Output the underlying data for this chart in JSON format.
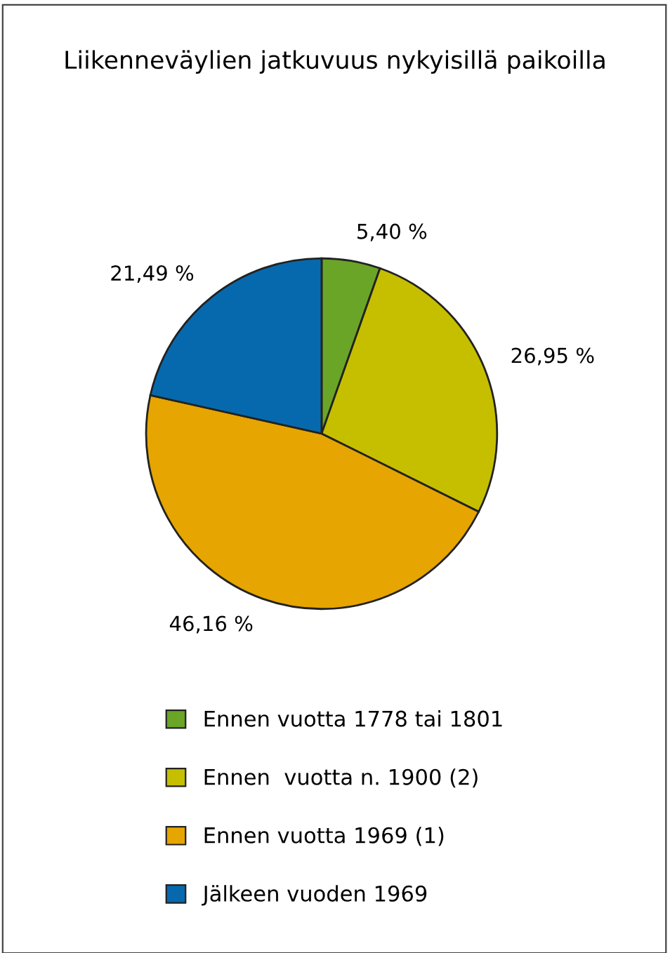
{
  "chart_data": {
    "type": "pie",
    "title": "Liikenneväylien jatkuvuus nykyisillä paikoilla",
    "categories": [
      "Ennen vuotta 1778 tai 1801",
      "Ennen  vuotta n. 1900 (2)",
      "Ennen vuotta 1969 (1)",
      "Jälkeen vuoden 1969"
    ],
    "values": [
      5.4,
      26.95,
      46.16,
      21.49
    ],
    "value_labels": [
      "5,40 %",
      "26,95 %",
      "46,16 %",
      "21,49 %"
    ],
    "colors": [
      "#6aa527",
      "#c6bf00",
      "#e6a500",
      "#0769ad"
    ],
    "legend": "bottom"
  }
}
